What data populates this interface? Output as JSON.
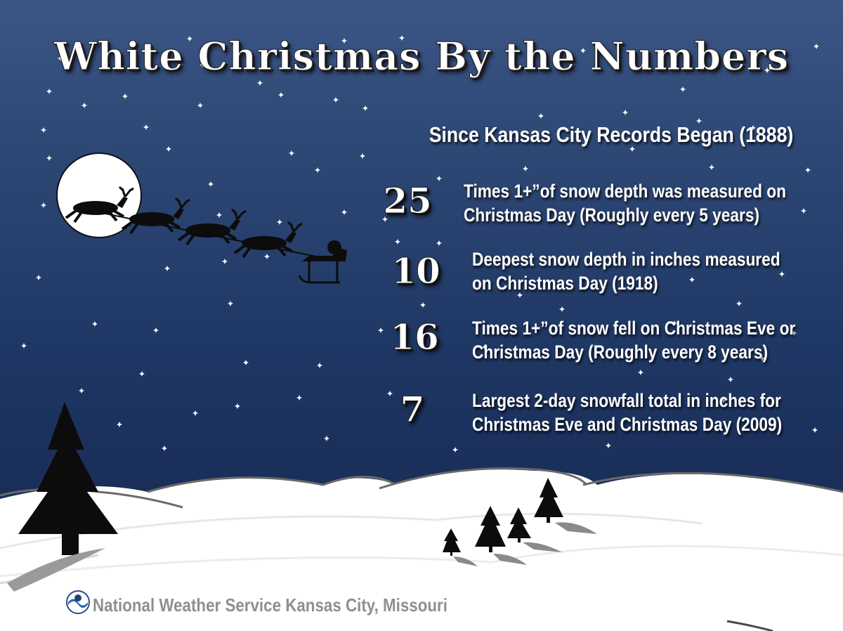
{
  "title": "White Christmas By the Numbers",
  "subtitle": "Since Kansas City Records Began (1888)",
  "stats": [
    {
      "number": "25",
      "line1": "Times 1+”of snow depth was measured on",
      "line2": "Christmas Day (Roughly every 5 years)"
    },
    {
      "number": "10",
      "line1": "Deepest snow depth in inches measured",
      "line2": "on Christmas Day (1918)"
    },
    {
      "number": "16",
      "line1": "Times 1+”of snow fell on Christmas Eve or",
      "line2": "Christmas Day (Roughly every 8 years)"
    },
    {
      "number": "7",
      "line1": "Largest 2-day snowfall total in inches for",
      "line2": "Christmas Eve and Christmas Day (2009)"
    }
  ],
  "footer": "National Weather Service Kansas City, Missouri",
  "colors": {
    "sky_top": "#3b5585",
    "sky_bottom": "#162a52",
    "snow": "#ffffff",
    "text": "#ffffff",
    "footer_text": "#8f8f8f"
  },
  "icons": [
    "moon-icon",
    "santa-sleigh-icon",
    "pine-tree-icon",
    "noaa-logo-icon",
    "star-icon"
  ]
}
